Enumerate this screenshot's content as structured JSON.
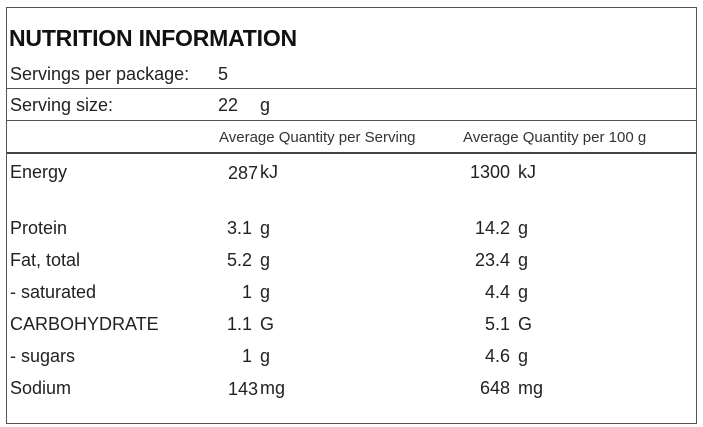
{
  "title": "NUTRITION INFORMATION",
  "servings_per_package": {
    "label": "Servings per package:",
    "value": "5"
  },
  "serving_size": {
    "label": "Serving size:",
    "value": "22",
    "unit": "g"
  },
  "columns": {
    "per_serving": "Average Quantity per Serving",
    "per_100g": "Average Quantity per 100 g"
  },
  "rows": [
    {
      "name": "Energy",
      "serving": "287",
      "serving_unit": "kJ",
      "per100": "1300",
      "per100_unit": "kJ"
    },
    {
      "name": "Protein",
      "serving": "3.1",
      "serving_unit": "g",
      "per100": "14.2",
      "per100_unit": "g"
    },
    {
      "name": "Fat, total",
      "serving": "5.2",
      "serving_unit": "g",
      "per100": "23.4",
      "per100_unit": "g"
    },
    {
      "name": "- saturated",
      "serving": "1",
      "serving_unit": "g",
      "per100": "4.4",
      "per100_unit": "g"
    },
    {
      "name": "CARBOHYDRATE",
      "serving": "1.1",
      "serving_unit": "G",
      "per100": "5.1",
      "per100_unit": "G"
    },
    {
      "name": "- sugars",
      "serving": "1",
      "serving_unit": "g",
      "per100": "4.6",
      "per100_unit": "g"
    },
    {
      "name": "Sodium",
      "serving": "143",
      "serving_unit": "mg",
      "per100": "648",
      "per100_unit": "mg"
    }
  ]
}
